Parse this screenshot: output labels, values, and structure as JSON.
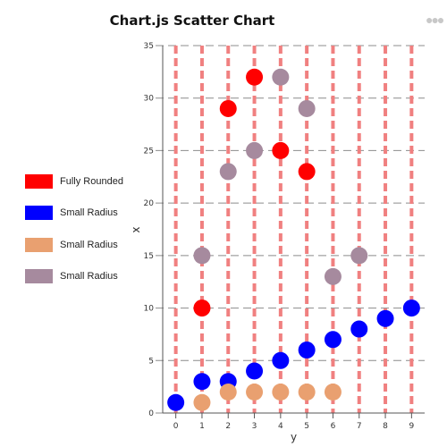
{
  "header": {
    "menu_icon": "ellipsis-icon"
  },
  "chart_data": {
    "type": "scatter",
    "title": "Chart.js Scatter Chart",
    "xlabel": "y",
    "ylabel": "x",
    "xlim": [
      -0.5,
      9.5
    ],
    "ylim": [
      0,
      35
    ],
    "x_ticks": [
      0,
      1,
      2,
      3,
      4,
      5,
      6,
      7,
      8,
      9
    ],
    "y_ticks": [
      0,
      5,
      10,
      15,
      20,
      25,
      30,
      35
    ],
    "grid": true,
    "legend_position": "left",
    "series": [
      {
        "name": "Fully Rounded",
        "color": "#ff0000",
        "points": [
          [
            1,
            10
          ],
          [
            2,
            29
          ],
          [
            3,
            32
          ],
          [
            4,
            25
          ],
          [
            5,
            23
          ]
        ]
      },
      {
        "name": "Small Radius",
        "color": "#0000ff",
        "points": [
          [
            0,
            1
          ],
          [
            1,
            3
          ],
          [
            2,
            3
          ],
          [
            3,
            4
          ],
          [
            4,
            5
          ],
          [
            5,
            6
          ],
          [
            6,
            7
          ],
          [
            7,
            8
          ],
          [
            8,
            9
          ],
          [
            9,
            10
          ]
        ]
      },
      {
        "name": "Small Radius",
        "color": "#e9a070",
        "points": [
          [
            1,
            1
          ],
          [
            2,
            2
          ],
          [
            3,
            2
          ],
          [
            4,
            2
          ],
          [
            5,
            2
          ],
          [
            6,
            2
          ]
        ]
      },
      {
        "name": "Small Radius",
        "color": "#a68a9e",
        "points": [
          [
            1,
            15
          ],
          [
            2,
            23
          ],
          [
            3,
            25
          ],
          [
            4,
            32
          ],
          [
            5,
            29
          ],
          [
            6,
            13
          ],
          [
            7,
            15
          ]
        ]
      }
    ]
  }
}
